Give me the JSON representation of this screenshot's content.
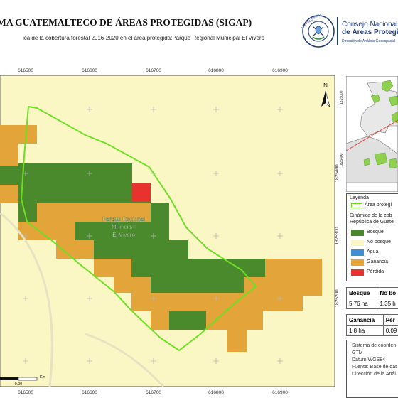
{
  "header": {
    "title": "MA GUATEMALTECO DE ÁREAS PROTEGIDAS  (SIGAP)",
    "subtitle": "ica de la cobertura forestal 2016-2020 en el área protegida:Parque Regional Municipal El Vivero",
    "seal_text": "CONSEJO NACIONAL DE ÁREAS PROTEGIDAS GUATEMALA",
    "logo_line1": "Consejo Nacional",
    "logo_line2": "de Áreas Protegi",
    "logo_line3": "Dirección de Análisis Geoespacial",
    "brand_color": "#1f3b7a"
  },
  "map": {
    "x_ticks": [
      "616500",
      "616600",
      "616700",
      "616800",
      "616900"
    ],
    "y_ticks": [
      "1825400",
      "1825300",
      "1825200"
    ],
    "area_label": [
      "Parque Regional",
      "Municipal",
      "El Vivero"
    ],
    "north_label": "N",
    "scale_unit": "Km",
    "scale_value": "0.09",
    "colors": {
      "bosque": "#4a8a2c",
      "no_bosque": "#fbf7c5",
      "agua": "#3e8ed8",
      "ganancia": "#e3a43a",
      "perdida": "#e8322d",
      "boundary": "#6be022"
    }
  },
  "inset": {
    "y_ticks": [
      "1825000",
      "1825400"
    ]
  },
  "legend": {
    "title": "Leyenda",
    "aoi_label": "Área protegi",
    "dynamic_title_1": "Dinámica de la cob",
    "dynamic_title_2": "República de Guate",
    "items": [
      {
        "label": "Bosque",
        "color": "#4a8a2c"
      },
      {
        "label": "No bosque",
        "color": "#fbf7c5"
      },
      {
        "label": "Agua",
        "color": "#3e8ed8"
      },
      {
        "label": "Ganancia",
        "color": "#e3a43a"
      },
      {
        "label": "Pérdida",
        "color": "#e8322d"
      }
    ]
  },
  "stats": {
    "table1": {
      "h1": "Bosque",
      "h2": "No bo",
      "v1": "5.76 ha",
      "v2": "1.35 h"
    },
    "table2": {
      "h1": "Ganancia",
      "h2": "Pér",
      "v1": "1.8 ha",
      "v2": "0.09"
    }
  },
  "info": {
    "line1": "Sistema de coorden",
    "line2": "GTM",
    "line3": "Datum WGS84",
    "line4": "Fuente: Base de dat",
    "line5": "Dirección de la Anál"
  }
}
